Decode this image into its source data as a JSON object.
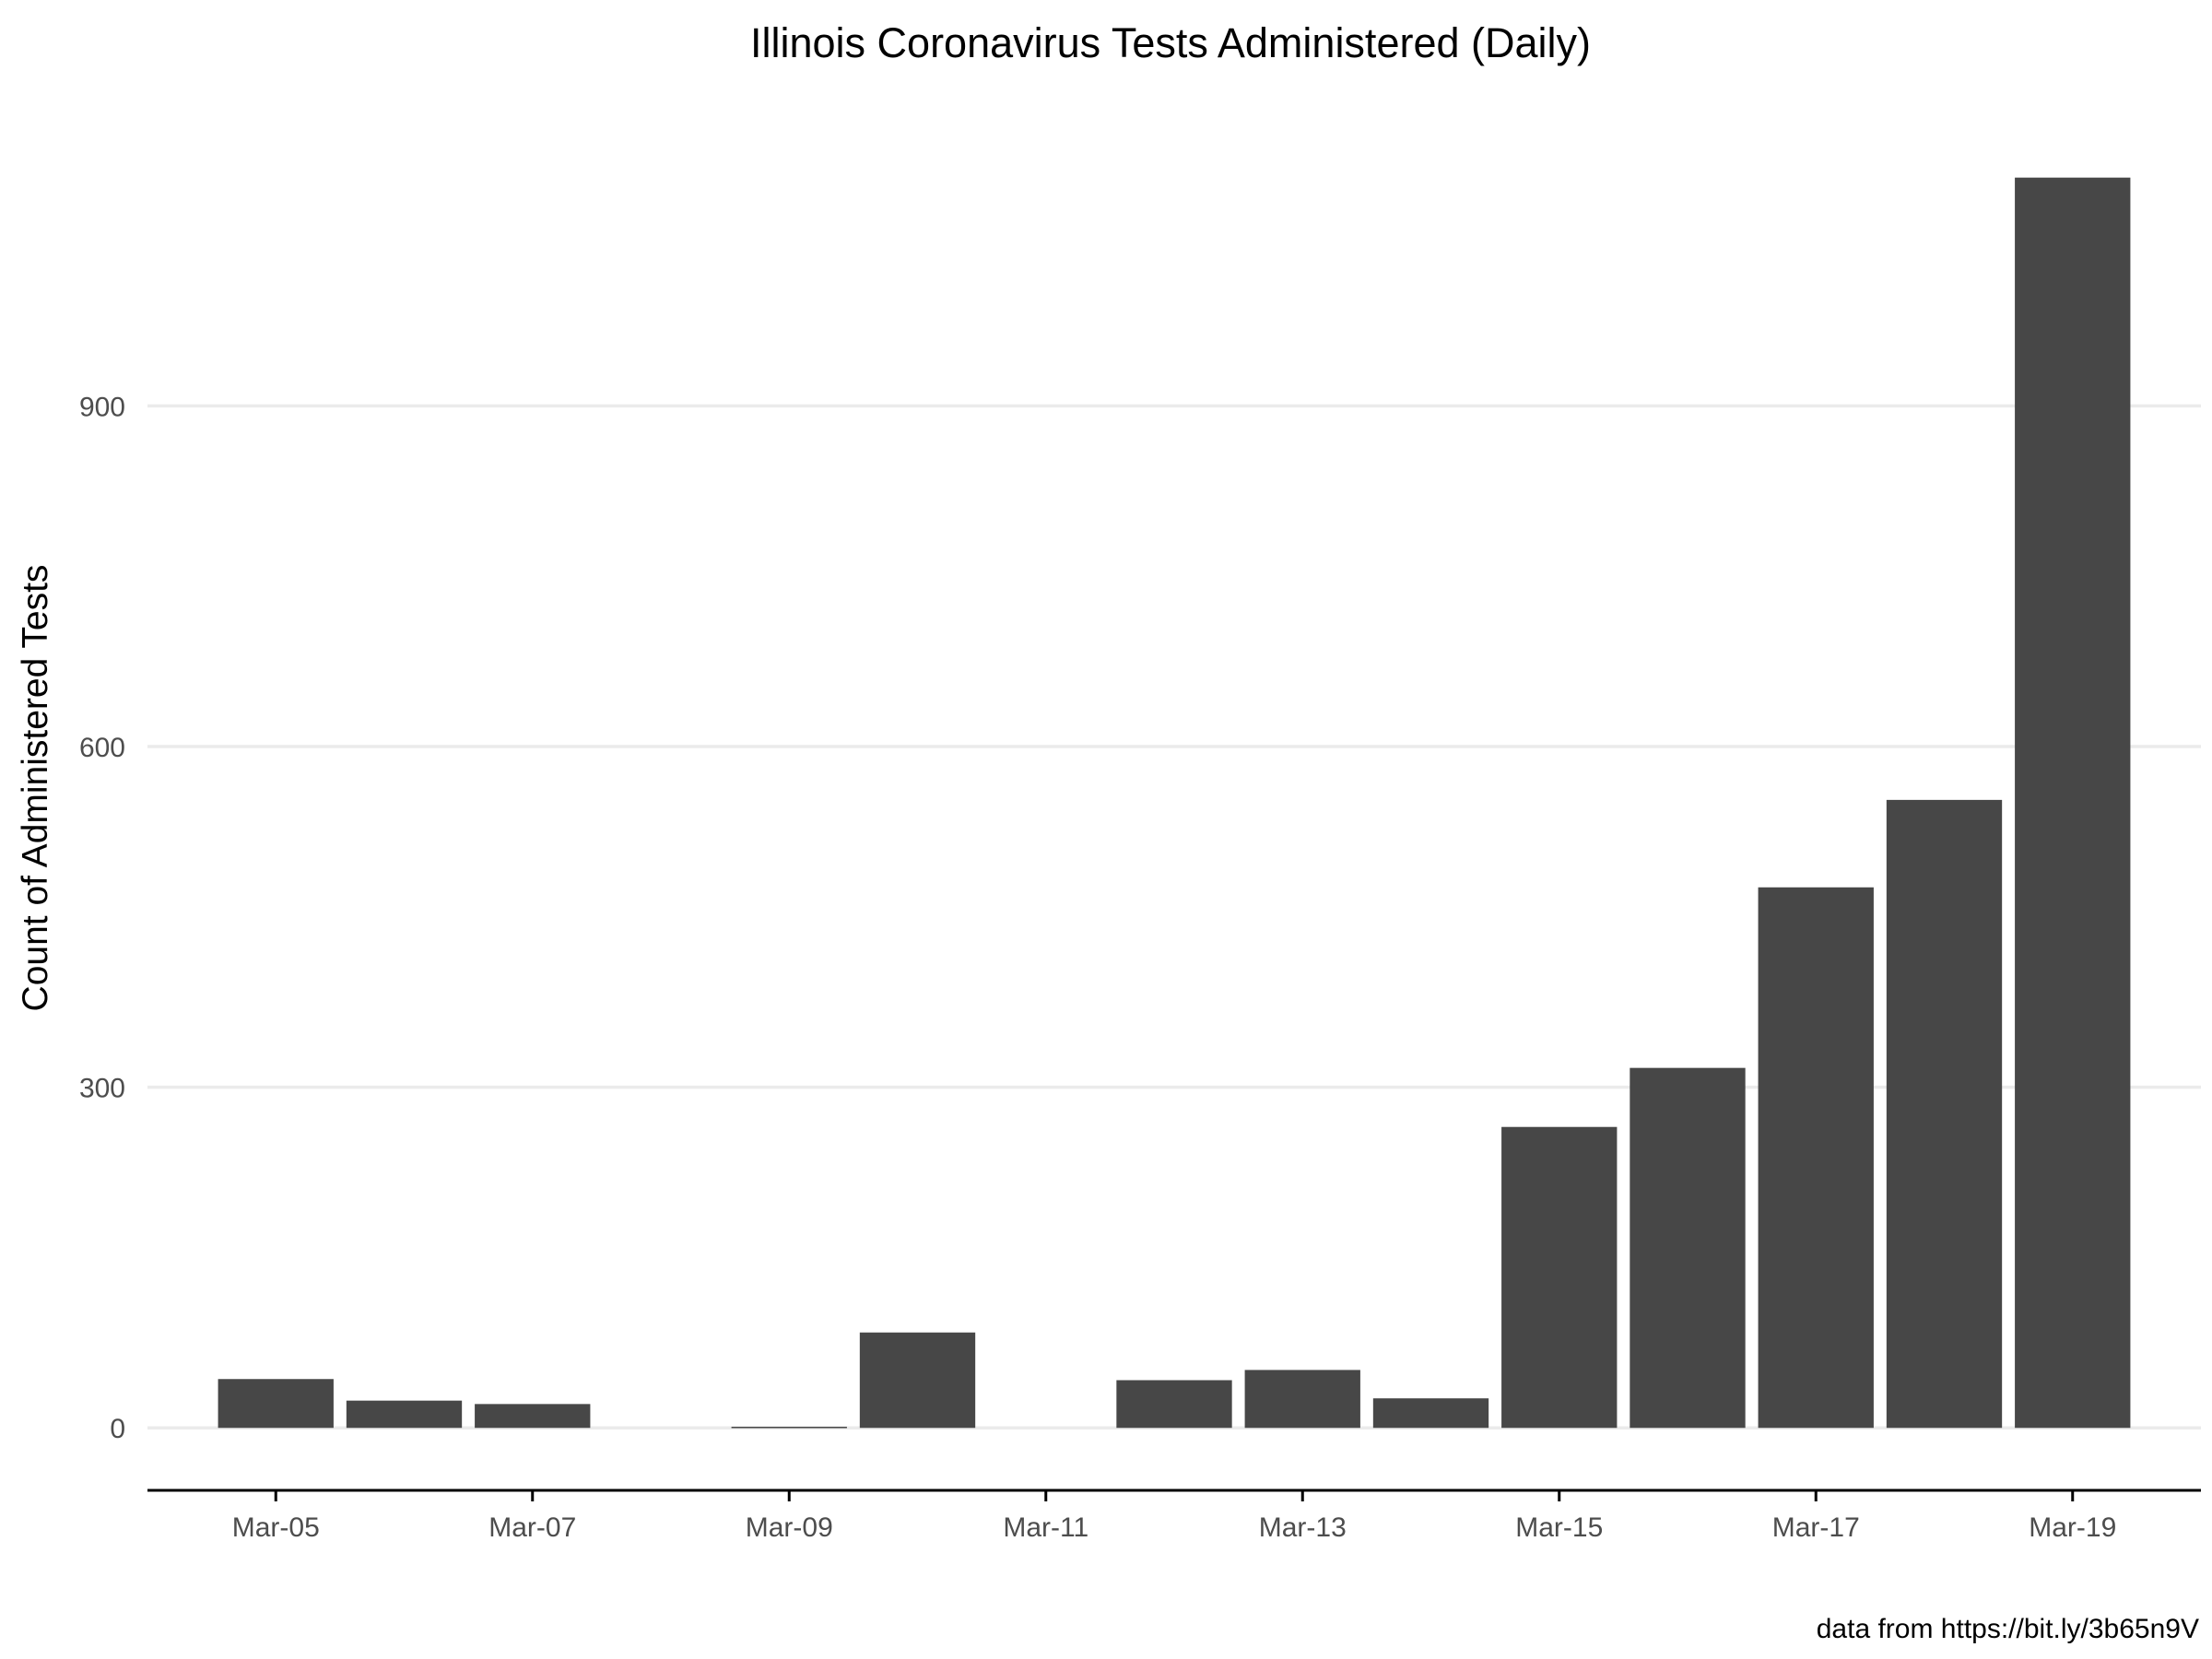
{
  "chart_data": {
    "type": "bar",
    "title": "Illinois Coronavirus Tests Administered (Daily)",
    "xlabel": "",
    "ylabel": "Count of Administered Tests",
    "caption": "data from https://bit.ly/3b65n9V",
    "x": [
      "2020-03-05",
      "2020-03-06",
      "2020-03-07",
      "2020-03-09",
      "2020-03-10",
      "2020-03-12",
      "2020-03-13",
      "2020-03-14",
      "2020-03-15",
      "2020-03-16",
      "2020-03-17",
      "2020-03-18",
      "2020-03-19"
    ],
    "values": [
      43,
      24,
      21,
      1,
      84,
      42,
      51,
      26,
      265,
      317,
      476,
      553,
      1101
    ],
    "x_ticks": [
      "Mar-05",
      "Mar-07",
      "Mar-09",
      "Mar-11",
      "Mar-13",
      "Mar-15",
      "Mar-17",
      "Mar-19"
    ],
    "y_ticks": [
      "0",
      "300",
      "600",
      "900"
    ],
    "ylim": [
      -55,
      1160
    ],
    "xlim": [
      "2020-03-04",
      "2020-03-20"
    ],
    "grid": "horizontal major only",
    "legend": "none",
    "bar_color": "#474747",
    "grid_color": "#ebebeb",
    "axis_color": "#000000"
  }
}
